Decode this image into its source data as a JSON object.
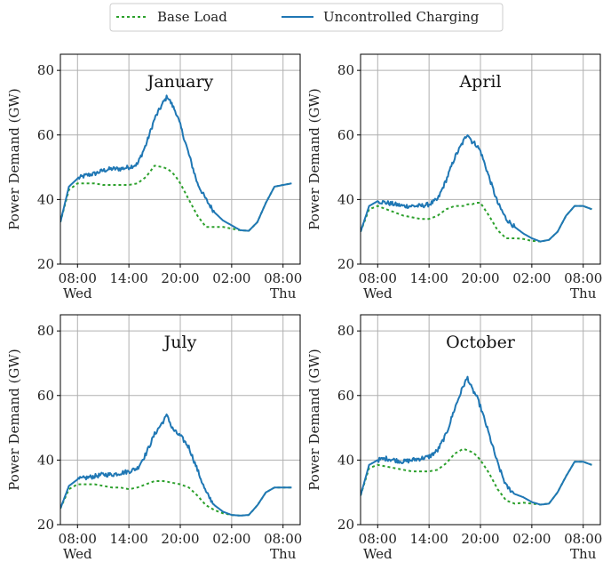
{
  "legend": {
    "items": [
      {
        "label": "Base Load",
        "color": "#2ca02c",
        "style": "dotted"
      },
      {
        "label": "Uncontrolled Charging",
        "color": "#1f77b4",
        "style": "solid"
      }
    ]
  },
  "chart_data": [
    {
      "type": "line",
      "title": "January",
      "ylabel": "Power Demand (GW)",
      "ylim": [
        20,
        85
      ],
      "yticks": [
        20,
        40,
        60,
        80
      ],
      "xticks": [
        "08:00",
        "14:00",
        "20:00",
        "02:00",
        "08:00"
      ],
      "x_sublabels": {
        "start": "Wed",
        "end": "Thu"
      },
      "x_hours": [
        6,
        7,
        8,
        9,
        10,
        11,
        12,
        13,
        14,
        15,
        16,
        17,
        18,
        18.5,
        19,
        19.5,
        20,
        21,
        22,
        23,
        24,
        25,
        26,
        27,
        28,
        29,
        30,
        31,
        32,
        33
      ],
      "series": [
        {
          "name": "Base Load",
          "values": [
            33,
            43,
            45,
            45,
            45,
            44.5,
            44.5,
            44.5,
            44.5,
            45,
            47,
            50.5,
            50,
            49.5,
            48.5,
            47,
            45,
            40,
            35,
            31.5,
            31.5,
            31.5,
            31,
            30.5,
            30.3,
            33,
            39,
            44,
            44.5,
            45
          ]
        },
        {
          "name": "Uncontrolled Charging",
          "values": [
            33,
            44,
            46.5,
            47.5,
            48,
            49,
            49.5,
            49.5,
            50,
            51,
            57,
            65,
            70,
            72,
            69.5,
            67,
            63,
            54,
            45,
            40,
            36,
            33.5,
            32,
            30.5,
            30.3,
            33,
            39,
            44,
            44.5,
            45
          ]
        }
      ]
    },
    {
      "type": "line",
      "title": "April",
      "ylabel": "Power Demand (GW)",
      "ylim": [
        20,
        85
      ],
      "yticks": [
        20,
        40,
        60,
        80
      ],
      "xticks": [
        "08:00",
        "14:00",
        "20:00",
        "02:00",
        "08:00"
      ],
      "x_sublabels": {
        "start": "Wed",
        "end": "Thu"
      },
      "x_hours": [
        6,
        7,
        8,
        9,
        10,
        11,
        12,
        13,
        14,
        15,
        16,
        17,
        18,
        18.5,
        19,
        19.5,
        20,
        21,
        22,
        23,
        24,
        25,
        26,
        27,
        28,
        29,
        30,
        31,
        32,
        33
      ],
      "series": [
        {
          "name": "Base Load",
          "values": [
            30,
            37,
            38,
            37,
            36,
            35,
            34.5,
            34,
            34,
            35,
            37,
            38,
            38,
            38.5,
            38.5,
            39,
            39,
            35,
            30.5,
            28,
            28,
            27.8,
            27.2,
            27,
            27.5,
            30,
            35,
            38,
            38,
            37
          ]
        },
        {
          "name": "Uncontrolled Charging",
          "values": [
            30,
            38,
            39.5,
            39,
            38.5,
            38,
            38,
            38,
            38.5,
            40,
            46,
            53,
            58,
            60.5,
            58,
            57,
            55,
            47,
            39,
            34,
            31.5,
            29.5,
            28,
            27,
            27.5,
            30,
            35,
            38,
            38,
            37
          ]
        }
      ]
    },
    {
      "type": "line",
      "title": "July",
      "ylabel": "Power Demand (GW)",
      "ylim": [
        20,
        85
      ],
      "yticks": [
        20,
        40,
        60,
        80
      ],
      "xticks": [
        "08:00",
        "14:00",
        "20:00",
        "02:00",
        "08:00"
      ],
      "x_sublabels": {
        "start": "Wed",
        "end": "Thu"
      },
      "x_hours": [
        6,
        7,
        8,
        9,
        10,
        11,
        12,
        13,
        14,
        15,
        16,
        17,
        18,
        18.5,
        19,
        19.5,
        20,
        21,
        22,
        23,
        24,
        25,
        26,
        27,
        28,
        29,
        30,
        31,
        32,
        33
      ],
      "series": [
        {
          "name": "Base Load",
          "values": [
            25,
            31,
            32.5,
            32.5,
            32.5,
            32,
            31.5,
            31.5,
            31,
            31.5,
            32.5,
            33.5,
            33.5,
            33.3,
            33,
            32.8,
            32.5,
            31.5,
            29,
            26,
            24.5,
            23.5,
            23,
            22.8,
            23,
            26,
            30,
            31.5,
            31.5,
            31.5
          ]
        },
        {
          "name": "Uncontrolled Charging",
          "values": [
            25,
            32,
            34,
            34.5,
            35,
            35.5,
            35.5,
            36,
            36.5,
            37.5,
            42,
            48,
            52,
            54,
            50,
            48.5,
            47.5,
            44,
            37,
            30,
            26,
            24,
            23,
            22.8,
            23,
            26,
            30,
            31.5,
            31.5,
            31.5
          ]
        }
      ]
    },
    {
      "type": "line",
      "title": "October",
      "ylabel": "Power Demand (GW)",
      "ylim": [
        20,
        85
      ],
      "yticks": [
        20,
        40,
        60,
        80
      ],
      "xticks": [
        "08:00",
        "14:00",
        "20:00",
        "02:00",
        "08:00"
      ],
      "x_sublabels": {
        "start": "Wed",
        "end": "Thu"
      },
      "x_hours": [
        6,
        7,
        8,
        9,
        10,
        11,
        12,
        13,
        14,
        15,
        16,
        17,
        18,
        18.5,
        19,
        19.5,
        20,
        21,
        22,
        23,
        24,
        25,
        26,
        27,
        28,
        29,
        30,
        31,
        32,
        33
      ],
      "series": [
        {
          "name": "Base Load",
          "values": [
            29,
            37.5,
            38.5,
            38,
            37.5,
            37,
            36.5,
            36.5,
            36.5,
            37,
            39,
            42,
            43.5,
            43,
            42.5,
            41.5,
            40,
            36,
            31,
            27.5,
            26.5,
            26.8,
            26.5,
            26.2,
            26.5,
            30,
            35,
            39.5,
            39.5,
            38.5
          ]
        },
        {
          "name": "Uncontrolled Charging",
          "values": [
            29,
            38.5,
            40,
            40.5,
            40,
            39.5,
            40,
            40.5,
            41,
            43,
            48,
            56,
            63,
            65.5,
            62,
            60,
            56.5,
            48,
            39,
            32,
            29.5,
            28.5,
            27,
            26.2,
            26.5,
            30,
            35,
            39.5,
            39.5,
            38.5
          ]
        }
      ]
    }
  ]
}
